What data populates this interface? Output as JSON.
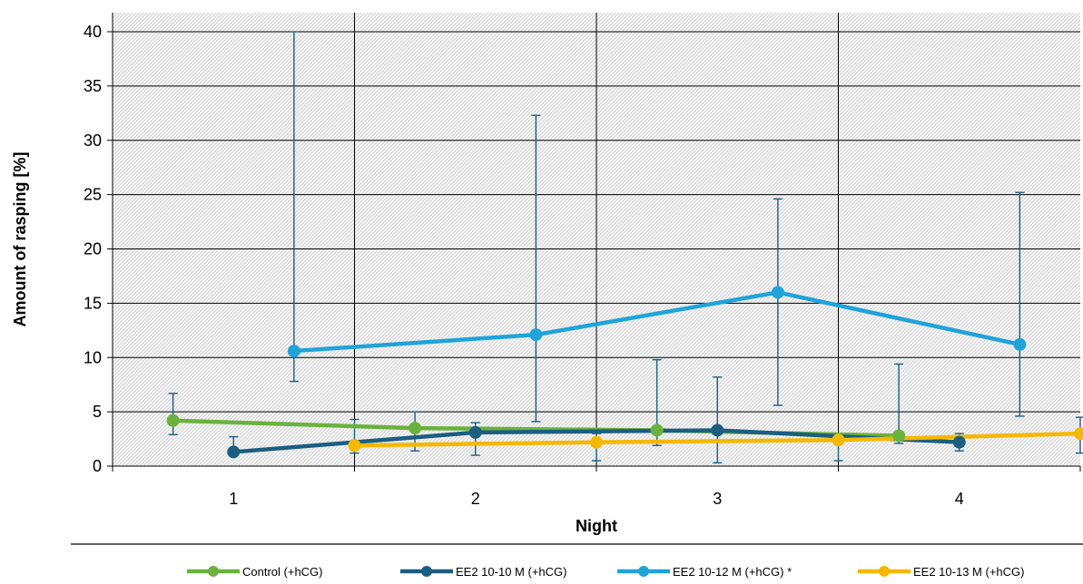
{
  "chart_data": {
    "type": "line",
    "xlabel": "Night",
    "ylabel": "Amount of rasping [%]",
    "categories": [
      "1",
      "2",
      "3",
      "4"
    ],
    "ylim": [
      0,
      40
    ],
    "yticks": [
      0,
      5,
      10,
      15,
      20,
      25,
      30,
      35,
      40
    ],
    "grid": true,
    "legend_position": "bottom",
    "series": [
      {
        "name": "Control (+hCG)",
        "color": "#6AB23E",
        "x": [
          0.75,
          1.75,
          2.75,
          3.75
        ],
        "values": [
          4.2,
          3.5,
          3.3,
          2.8
        ],
        "err_low": [
          2.9,
          1.4,
          1.9,
          2.1
        ],
        "err_high": [
          6.7,
          5.0,
          9.8,
          9.4
        ]
      },
      {
        "name": "EE2 10-10 M (+hCG)",
        "color": "#1B5E80",
        "x": [
          1.0,
          2.0,
          3.0,
          4.0
        ],
        "values": [
          1.3,
          3.1,
          3.3,
          2.2
        ],
        "err_low": [
          1.3,
          1.0,
          0.3,
          1.4
        ],
        "err_high": [
          2.7,
          4.0,
          8.2,
          3.0
        ]
      },
      {
        "name": "EE2 10-12 M (+hCG) *",
        "color": "#1FA3D9",
        "x": [
          1.25,
          2.25,
          3.25,
          4.25
        ],
        "values": [
          10.6,
          12.1,
          16.0,
          11.2
        ],
        "err_low": [
          7.8,
          4.1,
          5.6,
          4.6
        ],
        "err_high": [
          40.0,
          32.3,
          24.6,
          25.2
        ]
      },
      {
        "name": "EE2 10-13 M (+hCG)",
        "color": "#F5B800",
        "x": [
          1.5,
          2.5,
          3.5,
          4.5
        ],
        "values": [
          1.9,
          2.2,
          2.4,
          3.0
        ],
        "err_low": [
          1.2,
          0.5,
          0.5,
          1.2
        ],
        "err_high": [
          4.3,
          3.0,
          3.0,
          4.5
        ]
      }
    ]
  }
}
